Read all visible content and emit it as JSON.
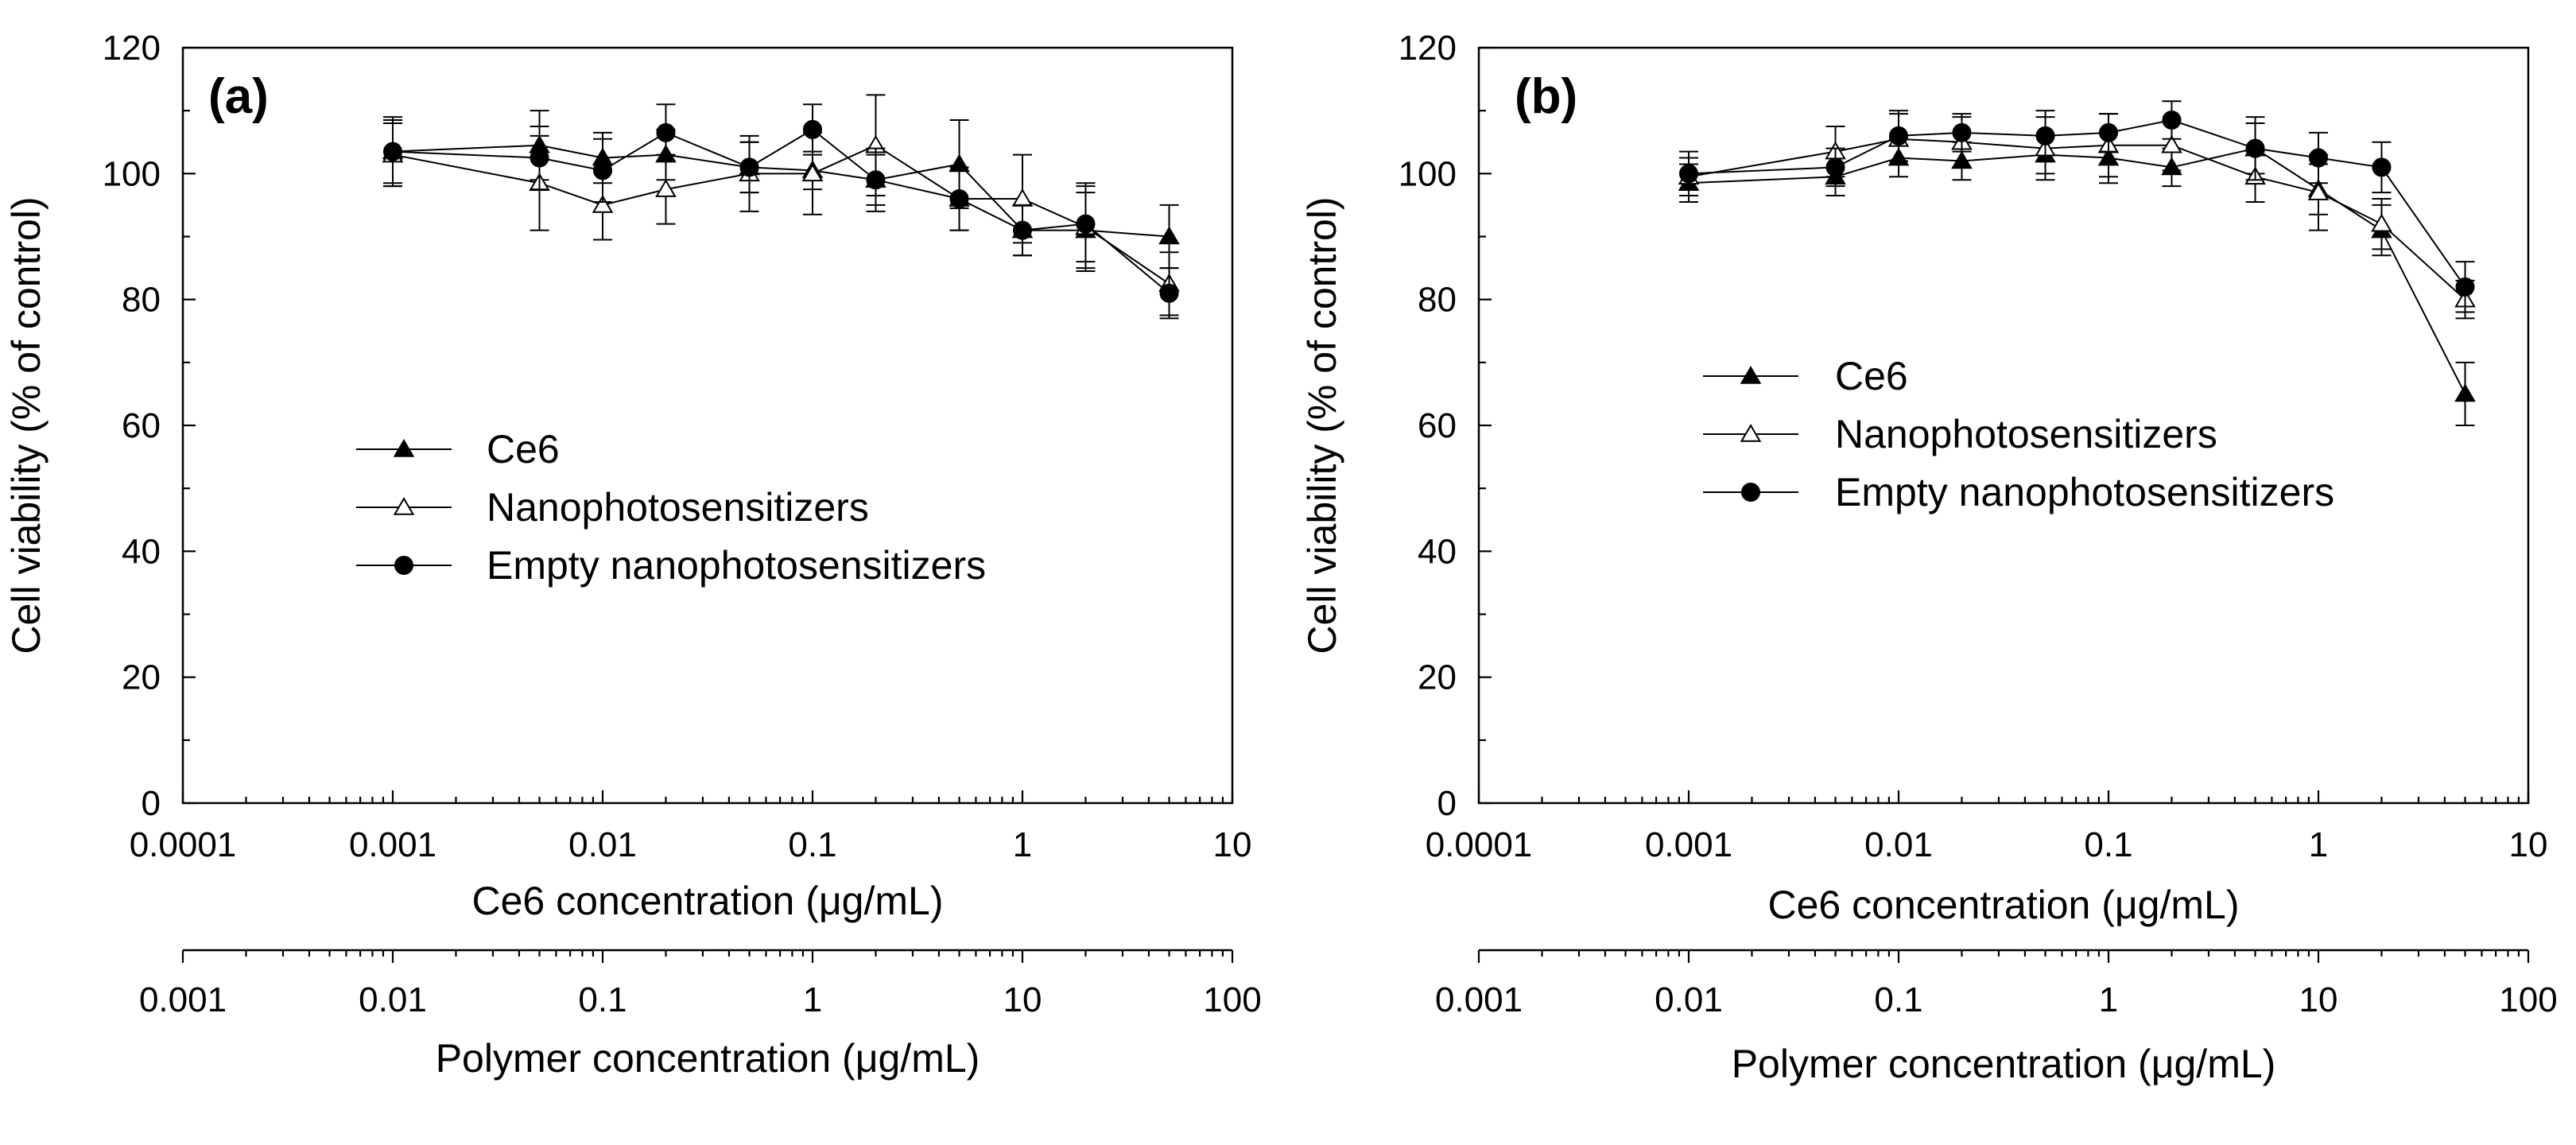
{
  "chart_data": [
    {
      "type": "scatter",
      "panel_label": "(a)",
      "xscale": "log",
      "xlim": [
        0.0001,
        10
      ],
      "xticks": [
        "0.0001",
        "0.001",
        "0.01",
        "0.1",
        "1",
        "10"
      ],
      "xlabel": "Ce6 concentration (μg/mL)",
      "x2lim": [
        0.001,
        100
      ],
      "x2ticks": [
        "0.001",
        "0.01",
        "0.1",
        "1",
        "10",
        "100"
      ],
      "x2label": "Polymer concentration (μg/mL)",
      "ylim": [
        0,
        120
      ],
      "yticks": [
        "0",
        "20",
        "40",
        "60",
        "80",
        "100",
        "120"
      ],
      "ylabel": "Cell viability (% of control)",
      "legend_position": "center-left",
      "x": [
        0.001,
        0.005,
        0.01,
        0.02,
        0.05,
        0.1,
        0.2,
        0.5,
        1,
        2,
        5
      ],
      "series": [
        {
          "name": "Ce6",
          "marker": "triangle-filled",
          "values": [
            103.5,
            104.5,
            102.5,
            103,
            101,
            100.5,
            99,
            101.5,
            91,
            91,
            90
          ],
          "errors": [
            5.5,
            5.5,
            4,
            4,
            4,
            3,
            4,
            7,
            4,
            6,
            5
          ]
        },
        {
          "name": "Nanophotosensitizers",
          "marker": "triangle-open",
          "values": [
            103,
            98.5,
            95,
            97.5,
            100,
            100,
            104.5,
            96,
            96,
            91.5,
            82.5
          ],
          "errors": [
            5,
            7.5,
            5.5,
            5.5,
            6,
            6.5,
            8,
            5,
            7,
            7,
            5
          ]
        },
        {
          "name": "Empty nanophotosensitizers",
          "marker": "circle-filled",
          "values": [
            103.5,
            102.5,
            100.5,
            106.5,
            101,
            107,
            99,
            96,
            91,
            92,
            81
          ],
          "errors": [
            5,
            5,
            5,
            4.5,
            4,
            4,
            5,
            5,
            4,
            6,
            4
          ]
        }
      ]
    },
    {
      "type": "scatter",
      "panel_label": "(b)",
      "xscale": "log",
      "xlim": [
        0.0001,
        10
      ],
      "xticks": [
        "0.0001",
        "0.001",
        "0.01",
        "0.1",
        "1",
        "10"
      ],
      "xlabel": "Ce6 concentration (μg/mL)",
      "x2lim": [
        0.001,
        100
      ],
      "x2ticks": [
        "0.001",
        "0.01",
        "0.1",
        "1",
        "10",
        "100"
      ],
      "x2label": "Polymer concentration (μg/mL)",
      "ylim": [
        0,
        120
      ],
      "yticks": [
        "0",
        "20",
        "40",
        "60",
        "80",
        "100",
        "120"
      ],
      "ylabel": "Cell viability (% of control)",
      "legend_position": "upper-left",
      "x": [
        0.001,
        0.005,
        0.01,
        0.02,
        0.05,
        0.1,
        0.2,
        0.5,
        1,
        2,
        5
      ],
      "series": [
        {
          "name": "Ce6",
          "marker": "triangle-filled",
          "values": [
            98.5,
            99.5,
            102.5,
            102,
            103,
            102.5,
            101,
            104,
            97.5,
            91,
            65
          ],
          "errors": [
            3,
            3,
            3,
            3,
            3,
            4,
            3,
            4,
            4,
            4,
            5
          ]
        },
        {
          "name": "Nanophotosensitizers",
          "marker": "triangle-open",
          "values": [
            99.5,
            103.5,
            105.5,
            105,
            104,
            104.5,
            104.5,
            99.5,
            97,
            92,
            80
          ],
          "errors": [
            3,
            4,
            4,
            4,
            5,
            5,
            4,
            4,
            6,
            4,
            3
          ]
        },
        {
          "name": "Empty nanophotosensitizers",
          "marker": "circle-filled",
          "values": [
            100,
            101,
            106,
            106.5,
            106,
            106.5,
            108.5,
            104,
            102.5,
            101,
            82
          ],
          "errors": [
            3.5,
            3,
            4,
            3,
            4,
            3,
            3,
            5,
            4,
            4,
            4
          ]
        }
      ]
    }
  ]
}
